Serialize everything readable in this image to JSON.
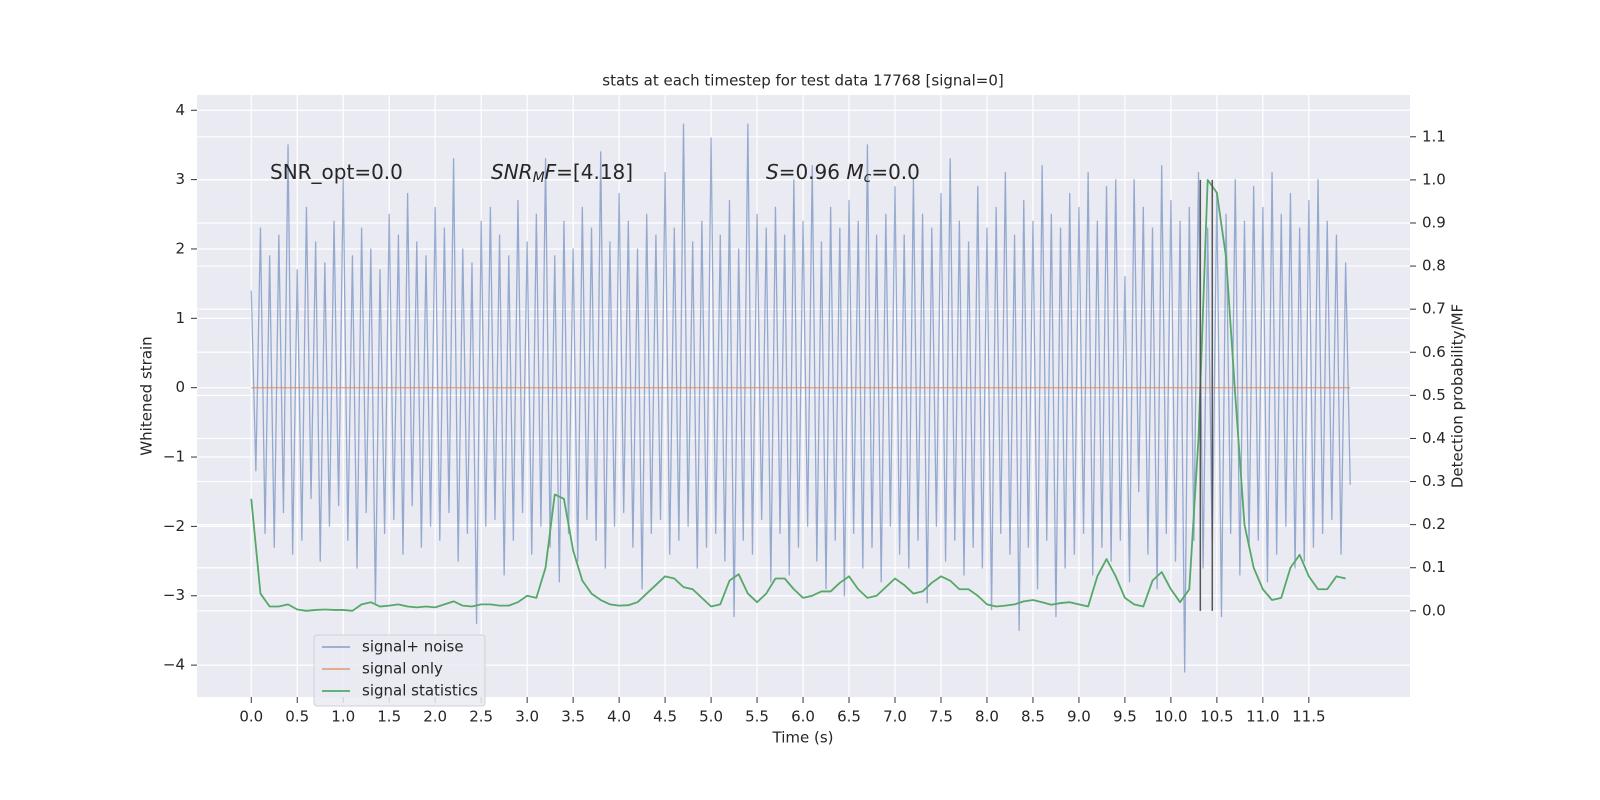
{
  "chart_data": {
    "type": "line",
    "title": "stats at each timestep for test data 17768 [signal=0]",
    "xlabel": "Time (s)",
    "ylabel": "Whitened strain",
    "y2label": "Detection probability/MF",
    "xlim": [
      -0.59,
      12.6
    ],
    "ylim": [
      -4.46,
      4.22
    ],
    "y2lim": [
      -0.2,
      1.197
    ],
    "grid": true,
    "legend": "lower left",
    "xticks": [
      {
        "value": 0,
        "label": "0.0"
      },
      {
        "value": 0.5,
        "label": "0.5"
      },
      {
        "value": 1,
        "label": "1.0"
      },
      {
        "value": 1.5,
        "label": "1.5"
      },
      {
        "value": 2,
        "label": "2.0"
      },
      {
        "value": 2.5,
        "label": "2.5"
      },
      {
        "value": 3,
        "label": "3.0"
      },
      {
        "value": 3.5,
        "label": "3.5"
      },
      {
        "value": 4,
        "label": "4.0"
      },
      {
        "value": 4.5,
        "label": "4.5"
      },
      {
        "value": 5,
        "label": "5.0"
      },
      {
        "value": 5.5,
        "label": "5.5"
      },
      {
        "value": 6,
        "label": "6.0"
      },
      {
        "value": 6.5,
        "label": "6.5"
      },
      {
        "value": 7,
        "label": "7.0"
      },
      {
        "value": 7.5,
        "label": "7.5"
      },
      {
        "value": 8,
        "label": "8.0"
      },
      {
        "value": 8.5,
        "label": "8.5"
      },
      {
        "value": 9,
        "label": "9.0"
      },
      {
        "value": 9.5,
        "label": "9.5"
      },
      {
        "value": 10,
        "label": "10.0"
      },
      {
        "value": 10.5,
        "label": "10.5"
      },
      {
        "value": 11,
        "label": "11.0"
      },
      {
        "value": 11.5,
        "label": "11.5"
      }
    ],
    "yticks": [
      {
        "value": -4,
        "label": "−4"
      },
      {
        "value": -3,
        "label": "−3"
      },
      {
        "value": -2,
        "label": "−2"
      },
      {
        "value": -1,
        "label": "−1"
      },
      0,
      1,
      2,
      3,
      4
    ],
    "y2ticks": [
      {
        "value": 0,
        "label": "0.0"
      },
      {
        "value": 0.1,
        "label": "0.1"
      },
      {
        "value": 0.2,
        "label": "0.2"
      },
      {
        "value": 0.3,
        "label": "0.3"
      },
      {
        "value": 0.4,
        "label": "0.4"
      },
      {
        "value": 0.5,
        "label": "0.5"
      },
      {
        "value": 0.6,
        "label": "0.6"
      },
      {
        "value": 0.7,
        "label": "0.7"
      },
      {
        "value": 0.8,
        "label": "0.8"
      },
      {
        "value": 0.9,
        "label": "0.9"
      },
      {
        "value": 1,
        "label": "1.0"
      },
      {
        "value": 1.1,
        "label": "1.1"
      }
    ],
    "annotations": [
      [
        {
          "text": "SNR_opt=0.0",
          "style": "normal"
        }
      ],
      [
        {
          "text": "SNR",
          "style": "italic"
        },
        {
          "text": "M",
          "style": "sub"
        },
        {
          "text": "F",
          "style": "italic"
        },
        {
          "text": "=[4.18]",
          "style": "normal"
        }
      ],
      [
        {
          "text": "S",
          "style": "italic"
        },
        {
          "text": "=0.96   ",
          "style": "normal"
        },
        {
          "text": "M",
          "style": "italic"
        },
        {
          "text": "c",
          "style": "sub"
        },
        {
          "text": "=0.0",
          "style": "normal"
        }
      ]
    ],
    "vlines": {
      "x": [
        10.32,
        10.45
      ],
      "ylim": [
        0,
        1
      ],
      "axis": "y2",
      "color": "#555555"
    },
    "series": [
      {
        "name": "signal+ noise",
        "color": "#4c72b0",
        "opacity": 0.55,
        "x": [
          0,
          0.05,
          0.1,
          0.15,
          0.2,
          0.25,
          0.3,
          0.35,
          0.4,
          0.45,
          0.5,
          0.55,
          0.6,
          0.65,
          0.7,
          0.75,
          0.8,
          0.85,
          0.9,
          0.95,
          1,
          1.05,
          1.1,
          1.15,
          1.2,
          1.25,
          1.3,
          1.35,
          1.4,
          1.45,
          1.5,
          1.55,
          1.6,
          1.65,
          1.7,
          1.75,
          1.8,
          1.85,
          1.9,
          1.95,
          2,
          2.05,
          2.1,
          2.15,
          2.2,
          2.25,
          2.3,
          2.35,
          2.4,
          2.45,
          2.5,
          2.55,
          2.6,
          2.65,
          2.7,
          2.75,
          2.8,
          2.85,
          2.9,
          2.95,
          3,
          3.05,
          3.1,
          3.15,
          3.2,
          3.25,
          3.3,
          3.35,
          3.4,
          3.45,
          3.5,
          3.55,
          3.6,
          3.65,
          3.7,
          3.75,
          3.8,
          3.85,
          3.9,
          3.95,
          4,
          4.05,
          4.1,
          4.15,
          4.2,
          4.25,
          4.3,
          4.35,
          4.4,
          4.45,
          4.5,
          4.55,
          4.6,
          4.65,
          4.7,
          4.75,
          4.8,
          4.85,
          4.9,
          4.95,
          5,
          5.05,
          5.1,
          5.15,
          5.2,
          5.25,
          5.3,
          5.35,
          5.4,
          5.45,
          5.5,
          5.55,
          5.6,
          5.65,
          5.7,
          5.75,
          5.8,
          5.85,
          5.9,
          5.95,
          6,
          6.05,
          6.1,
          6.15,
          6.2,
          6.25,
          6.3,
          6.35,
          6.4,
          6.45,
          6.5,
          6.55,
          6.6,
          6.65,
          6.7,
          6.75,
          6.8,
          6.85,
          6.9,
          6.95,
          7,
          7.05,
          7.1,
          7.15,
          7.2,
          7.25,
          7.3,
          7.35,
          7.4,
          7.45,
          7.5,
          7.55,
          7.6,
          7.65,
          7.7,
          7.75,
          7.8,
          7.85,
          7.9,
          7.95,
          8,
          8.05,
          8.1,
          8.15,
          8.2,
          8.25,
          8.3,
          8.35,
          8.4,
          8.45,
          8.5,
          8.55,
          8.6,
          8.65,
          8.7,
          8.75,
          8.8,
          8.85,
          8.9,
          8.95,
          9,
          9.05,
          9.1,
          9.15,
          9.2,
          9.25,
          9.3,
          9.35,
          9.4,
          9.45,
          9.5,
          9.55,
          9.6,
          9.65,
          9.7,
          9.75,
          9.8,
          9.85,
          9.9,
          9.95,
          10,
          10.05,
          10.1,
          10.15,
          10.2,
          10.25,
          10.3,
          10.35,
          10.4,
          10.45,
          10.5,
          10.55,
          10.6,
          10.65,
          10.7,
          10.75,
          10.8,
          10.85,
          10.9,
          10.95,
          11,
          11.05,
          11.1,
          11.15,
          11.2,
          11.25,
          11.3,
          11.35,
          11.4,
          11.45,
          11.5,
          11.55,
          11.6,
          11.65,
          11.7,
          11.75,
          11.8,
          11.85,
          11.9,
          11.95
        ],
        "values": [
          1.4,
          -1.2,
          2.3,
          -2.1,
          1.9,
          -2.3,
          2.2,
          -1.8,
          3.5,
          -2.4,
          1.7,
          -2.2,
          2.6,
          -1.6,
          2.1,
          -2.5,
          1.8,
          -2.0,
          2.4,
          -1.7,
          3.0,
          -2.2,
          1.9,
          -2.6,
          2.3,
          -1.8,
          2.0,
          -3.1,
          1.7,
          -2.1,
          2.5,
          -1.9,
          2.2,
          -2.4,
          2.8,
          -1.7,
          2.1,
          -2.3,
          1.9,
          -2.0,
          2.6,
          -2.2,
          2.3,
          -1.8,
          3.3,
          -2.5,
          2.0,
          -2.1,
          1.8,
          -3.4,
          2.4,
          -2.0,
          2.6,
          -1.9,
          2.2,
          -2.7,
          1.9,
          -2.2,
          2.7,
          -1.8,
          2.1,
          -2.4,
          2.5,
          -2.0,
          3.3,
          -2.3,
          1.9,
          -2.8,
          2.4,
          -2.1,
          2.0,
          -2.5,
          2.6,
          -1.9,
          2.3,
          -2.2,
          3.4,
          -2.6,
          2.1,
          -2.0,
          2.8,
          -1.8,
          2.4,
          -2.3,
          2.0,
          -2.9,
          2.5,
          -2.1,
          2.2,
          -1.9,
          3.1,
          -2.4,
          2.3,
          -2.2,
          3.8,
          -2.0,
          2.1,
          -2.6,
          2.4,
          -2.3,
          3.6,
          -2.1,
          2.2,
          -2.5,
          2.7,
          -3.3,
          2.0,
          -2.2,
          3.8,
          -2.4,
          2.5,
          -1.9,
          2.3,
          -2.8,
          2.6,
          -2.1,
          2.2,
          -2.7,
          3.0,
          -2.3,
          2.4,
          -2.0,
          3.2,
          -2.5,
          2.1,
          -2.9,
          2.6,
          -2.2,
          2.3,
          -3.0,
          2.7,
          -2.1,
          2.4,
          -2.6,
          3.5,
          -2.3,
          2.2,
          -2.8,
          2.5,
          -2.0,
          2.9,
          -2.4,
          2.2,
          -2.6,
          3.0,
          -2.2,
          2.5,
          -3.1,
          2.3,
          -2.0,
          2.8,
          -2.5,
          3.3,
          -2.2,
          2.4,
          -2.7,
          2.1,
          -2.3,
          2.9,
          -2.6,
          2.3,
          -3.2,
          2.6,
          -2.1,
          3.1,
          -2.4,
          2.2,
          -3.5,
          2.7,
          -2.3,
          2.4,
          -2.9,
          3.2,
          -2.2,
          2.5,
          -3.3,
          2.3,
          -2.6,
          2.8,
          -2.4,
          2.6,
          -2.1,
          3.1,
          -2.7,
          2.4,
          -2.3,
          2.9,
          -2.5,
          3.0,
          -2.2,
          1.6,
          -2.8,
          3.0,
          -1.5,
          2.6,
          -2.4,
          2.3,
          -2.9,
          3.2,
          -2.1,
          2.7,
          -2.5,
          2.4,
          -4.1,
          2.6,
          -2.2,
          3.1,
          -2.6,
          2.3,
          -2.4,
          2.8,
          -3.3,
          2.5,
          -2.1,
          3.0,
          -2.7,
          2.4,
          -2.3,
          2.9,
          -2.2,
          2.6,
          -2.8,
          3.1,
          -2.4,
          2.5,
          -2.0,
          2.8,
          -2.6,
          2.3,
          -2.5,
          2.7,
          -2.3,
          3.0,
          -2.1,
          2.4,
          -1.9,
          2.2,
          -2.4,
          1.8,
          -1.4
        ]
      },
      {
        "name": "signal only",
        "color": "#dd8452",
        "opacity": 0.7,
        "x": [
          0,
          11.95
        ],
        "values": [
          0,
          0
        ]
      },
      {
        "name": "signal statistics",
        "color": "#55a868",
        "opacity": 1,
        "axis": "y2",
        "x": [
          0,
          0.1,
          0.2,
          0.3,
          0.4,
          0.5,
          0.6,
          0.7,
          0.8,
          0.9,
          1,
          1.1,
          1.2,
          1.3,
          1.4,
          1.5,
          1.6,
          1.7,
          1.8,
          1.9,
          2,
          2.1,
          2.2,
          2.3,
          2.4,
          2.5,
          2.6,
          2.7,
          2.8,
          2.9,
          3,
          3.1,
          3.2,
          3.3,
          3.4,
          3.5,
          3.6,
          3.7,
          3.8,
          3.9,
          4,
          4.1,
          4.2,
          4.3,
          4.4,
          4.5,
          4.6,
          4.7,
          4.8,
          4.9,
          5,
          5.1,
          5.2,
          5.3,
          5.4,
          5.5,
          5.6,
          5.7,
          5.8,
          5.9,
          6,
          6.1,
          6.2,
          6.3,
          6.4,
          6.5,
          6.6,
          6.7,
          6.8,
          6.9,
          7,
          7.1,
          7.2,
          7.3,
          7.4,
          7.5,
          7.6,
          7.7,
          7.8,
          7.9,
          8,
          8.1,
          8.2,
          8.3,
          8.4,
          8.5,
          8.6,
          8.7,
          8.8,
          8.9,
          9,
          9.1,
          9.2,
          9.3,
          9.4,
          9.5,
          9.6,
          9.7,
          9.8,
          9.9,
          10,
          10.1,
          10.2,
          10.3,
          10.4,
          10.5,
          10.6,
          10.7,
          10.8,
          10.9,
          11,
          11.1,
          11.2,
          11.3,
          11.4,
          11.5,
          11.6,
          11.7,
          11.8,
          11.9
        ],
        "values": [
          0.26,
          0.04,
          0.01,
          0.01,
          0.015,
          0.003,
          0,
          0.002,
          0.003,
          0.002,
          0.002,
          0,
          0.015,
          0.02,
          0.01,
          0.012,
          0.015,
          0.01,
          0.008,
          0.01,
          0.008,
          0.015,
          0.022,
          0.012,
          0.01,
          0.015,
          0.015,
          0.012,
          0.012,
          0.02,
          0.035,
          0.03,
          0.1,
          0.27,
          0.26,
          0.14,
          0.07,
          0.04,
          0.025,
          0.015,
          0.012,
          0.013,
          0.02,
          0.04,
          0.06,
          0.08,
          0.075,
          0.055,
          0.05,
          0.03,
          0.01,
          0.015,
          0.07,
          0.085,
          0.04,
          0.02,
          0.04,
          0.075,
          0.075,
          0.05,
          0.03,
          0.035,
          0.045,
          0.045,
          0.065,
          0.08,
          0.05,
          0.03,
          0.035,
          0.055,
          0.075,
          0.06,
          0.04,
          0.045,
          0.065,
          0.08,
          0.07,
          0.05,
          0.05,
          0.035,
          0.015,
          0.01,
          0.012,
          0.015,
          0.022,
          0.025,
          0.02,
          0.014,
          0.018,
          0.02,
          0.015,
          0.01,
          0.08,
          0.12,
          0.08,
          0.03,
          0.015,
          0.01,
          0.07,
          0.09,
          0.05,
          0.02,
          0.05,
          0.4,
          1.0,
          0.97,
          0.82,
          0.5,
          0.2,
          0.1,
          0.05,
          0.025,
          0.03,
          0.1,
          0.13,
          0.08,
          0.05,
          0.05,
          0.08,
          0.075
        ]
      }
    ]
  }
}
